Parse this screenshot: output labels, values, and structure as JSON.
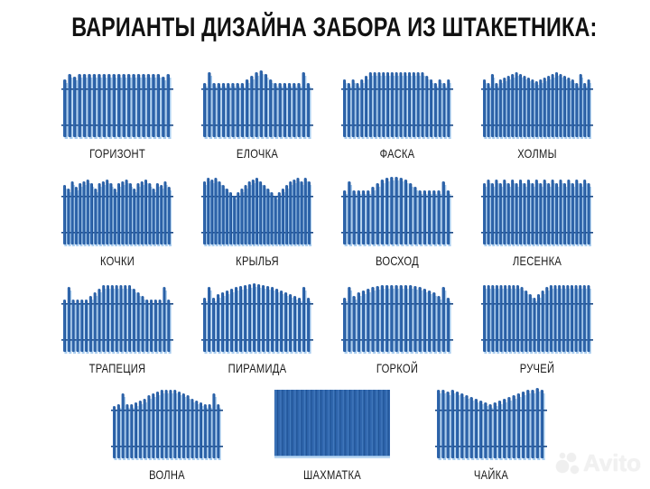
{
  "title": "ВАРИАНТЫ ДИЗАЙНА ЗАБОРА ИЗ ШТАКЕТНИКА:",
  "colors": {
    "picket": "#2f66ad",
    "picket_dark": "#1d4e8f",
    "picket_light": "#a9cdef",
    "rail": "#1d4a86",
    "label": "#1a1a1a",
    "background": "#ffffff"
  },
  "fences": [
    {
      "label": "ГОРИЗОНТ",
      "profile": [
        14,
        8,
        11,
        8,
        8,
        8,
        8,
        8,
        8,
        8,
        8,
        8,
        8,
        8,
        8,
        8,
        8,
        8,
        8,
        8,
        11,
        8
      ]
    },
    {
      "label": "ЕЛОЧКА",
      "profile": [
        18,
        6,
        18,
        18,
        18,
        18,
        18,
        18,
        18,
        14,
        10,
        6,
        4,
        8,
        14,
        18,
        18,
        18,
        18,
        18,
        18,
        6,
        18
      ]
    },
    {
      "label": "ФАСКА",
      "profile": [
        14,
        18,
        14,
        18,
        14,
        10,
        6,
        6,
        6,
        6,
        6,
        6,
        6,
        6,
        6,
        6,
        6,
        6,
        6,
        10,
        14,
        18,
        14,
        18,
        14
      ]
    },
    {
      "label": "ХОЛМЫ",
      "profile": [
        14,
        18,
        8,
        18,
        14,
        12,
        10,
        8,
        6,
        8,
        10,
        12,
        14,
        16,
        14,
        12,
        10,
        8,
        6,
        8,
        10,
        12,
        14,
        18,
        8,
        18,
        14
      ]
    },
    {
      "label": "КОЧКИ",
      "profile": [
        12,
        16,
        8,
        14,
        10,
        8,
        6,
        10,
        16,
        10,
        8,
        6,
        10,
        16,
        10,
        8,
        6,
        10,
        16,
        10,
        8,
        6,
        10,
        16,
        10,
        12,
        8,
        14
      ]
    },
    {
      "label": "КРЫЛЬЯ",
      "profile": [
        8,
        4,
        6,
        4,
        8,
        12,
        16,
        20,
        24,
        20,
        16,
        12,
        8,
        6,
        4,
        8,
        12,
        16,
        20,
        24,
        20,
        16,
        12,
        8,
        6,
        4,
        8,
        4,
        8
      ]
    },
    {
      "label": "ВОСХОД",
      "profile": [
        18,
        8,
        18,
        18,
        18,
        18,
        14,
        10,
        6,
        4,
        3,
        3,
        4,
        6,
        10,
        14,
        18,
        18,
        18,
        18,
        18,
        8,
        18
      ]
    },
    {
      "label": "ЛЕСЕНКА",
      "profile": [
        10,
        6,
        10,
        6,
        10,
        6,
        10,
        6,
        10,
        6,
        10,
        6,
        10,
        6,
        10,
        6,
        10,
        6,
        10,
        6,
        10,
        6,
        10,
        6,
        10,
        6,
        10
      ]
    },
    {
      "label": "ТРАПЕЦИЯ",
      "profile": [
        20,
        6,
        20,
        20,
        20,
        20,
        16,
        12,
        8,
        4,
        4,
        4,
        4,
        4,
        4,
        4,
        8,
        12,
        16,
        20,
        20,
        20,
        20,
        6,
        20
      ]
    },
    {
      "label": "ПИРАМИДА",
      "profile": [
        18,
        6,
        18,
        14,
        12,
        10,
        8,
        6,
        5,
        4,
        3,
        2,
        3,
        4,
        5,
        6,
        8,
        10,
        12,
        14,
        16,
        18,
        6,
        18
      ]
    },
    {
      "label": "ГОРКОЙ",
      "profile": [
        18,
        6,
        16,
        12,
        10,
        8,
        6,
        5,
        4,
        4,
        4,
        4,
        4,
        4,
        4,
        5,
        6,
        8,
        10,
        12,
        16,
        6,
        18
      ]
    },
    {
      "label": "РУЧЕЙ",
      "profile": [
        4,
        4,
        4,
        4,
        4,
        4,
        4,
        4,
        4,
        6,
        10,
        14,
        18,
        14,
        10,
        6,
        4,
        4,
        4,
        4,
        4,
        4,
        4,
        4,
        4,
        4
      ]
    },
    {
      "label": "ВОЛНА",
      "profile": [
        20,
        18,
        6,
        18,
        18,
        16,
        14,
        12,
        8,
        6,
        4,
        2,
        2,
        2,
        2,
        4,
        6,
        8,
        12,
        14,
        16,
        18,
        18,
        6,
        18
      ]
    },
    {
      "label": "ШАХМАТКА",
      "profile": [
        0,
        0,
        0,
        0,
        0,
        0,
        0,
        0,
        0,
        0,
        0,
        0,
        0,
        0,
        0,
        0,
        0,
        0,
        0,
        0,
        0,
        0,
        0,
        0
      ]
    },
    {
      "label": "ЧАЙКА",
      "profile": [
        2,
        2,
        4,
        2,
        4,
        6,
        8,
        10,
        12,
        14,
        16,
        18,
        16,
        14,
        12,
        10,
        8,
        6,
        4,
        2,
        2,
        0,
        2
      ]
    }
  ],
  "watermark": {
    "text": "Avito",
    "icon": "avito-dots-icon"
  }
}
